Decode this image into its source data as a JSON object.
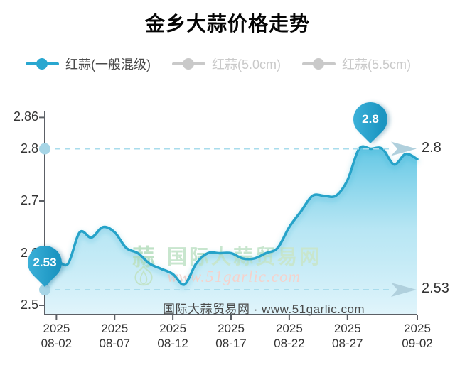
{
  "title": "金乡大蒜价格走势",
  "legend": {
    "items": [
      {
        "label": "红蒜(一般混级)",
        "active": true,
        "color": "#29a7d0"
      },
      {
        "label": "红蒜(5.0cm)",
        "active": false,
        "color": "#c9c9c9"
      },
      {
        "label": "红蒜(5.5cm)",
        "active": false,
        "color": "#c9c9c9"
      }
    ]
  },
  "y_axis": {
    "ticks": [
      "2.86",
      "2.8",
      "2.7",
      "2.6",
      "2.5"
    ]
  },
  "x_axis": {
    "ticks": [
      {
        "year": "2025",
        "date": "08-02"
      },
      {
        "year": "2025",
        "date": "08-07"
      },
      {
        "year": "2025",
        "date": "08-12"
      },
      {
        "year": "2025",
        "date": "08-17"
      },
      {
        "year": "2025",
        "date": "08-22"
      },
      {
        "year": "2025",
        "date": "08-27"
      },
      {
        "year": "2025",
        "date": "09-02"
      }
    ]
  },
  "markers": {
    "start_label": "2.53",
    "end_label": "2.8"
  },
  "reference_lines": [
    {
      "value": 2.8,
      "label": "2.8"
    },
    {
      "value": 2.53,
      "label": "2.53"
    }
  ],
  "watermark": {
    "logo_char": "蒜",
    "site_name": "国际大蒜贸易网",
    "site_url": "www.51garlic.com"
  },
  "footer": "国际大蒜贸易网 · www.51garlic.com",
  "colors": {
    "line": "#27a3c9",
    "area_top": "#4fc0e1",
    "area_bottom": "#dff4fb",
    "dashed": "#a9dcec",
    "dot": "#a6d5e6",
    "arrow": "#b0d0dd",
    "axis": "#5c6066",
    "pin": "#1b95c1",
    "inactive_legend": "#c9c9c9"
  },
  "chart_data": {
    "type": "line",
    "title": "金乡大蒜价格走势",
    "ylim": [
      2.5,
      2.86
    ],
    "y_ticks": [
      2.86,
      2.8,
      2.7,
      2.6,
      2.5
    ],
    "x_tick_indices": [
      1,
      6,
      11,
      16,
      21,
      26,
      32
    ],
    "legend_position": "top-left",
    "grid": false,
    "series": [
      {
        "name": "红蒜(一般混级)",
        "x": [
          "2025-08-01",
          "2025-08-02",
          "2025-08-03",
          "2025-08-04",
          "2025-08-05",
          "2025-08-06",
          "2025-08-07",
          "2025-08-08",
          "2025-08-09",
          "2025-08-10",
          "2025-08-11",
          "2025-08-12",
          "2025-08-13",
          "2025-08-14",
          "2025-08-15",
          "2025-08-16",
          "2025-08-17",
          "2025-08-18",
          "2025-08-19",
          "2025-08-20",
          "2025-08-21",
          "2025-08-22",
          "2025-08-23",
          "2025-08-24",
          "2025-08-25",
          "2025-08-26",
          "2025-08-27",
          "2025-08-28",
          "2025-08-29",
          "2025-08-30",
          "2025-08-31",
          "2025-09-01",
          "2025-09-02"
        ],
        "values": [
          2.53,
          2.58,
          2.58,
          2.64,
          2.63,
          2.65,
          2.64,
          2.61,
          2.6,
          2.58,
          2.57,
          2.56,
          2.54,
          2.58,
          2.6,
          2.6,
          2.6,
          2.59,
          2.59,
          2.6,
          2.61,
          2.65,
          2.68,
          2.71,
          2.71,
          2.71,
          2.74,
          2.8,
          2.8,
          2.8,
          2.77,
          2.79,
          2.78
        ]
      },
      {
        "name": "红蒜(5.0cm)",
        "values": [],
        "visible": false
      },
      {
        "name": "红蒜(5.5cm)",
        "values": [],
        "visible": false
      }
    ],
    "annotations": [
      {
        "index": 0,
        "label": "2.53",
        "type": "balloon"
      },
      {
        "index": 28,
        "label": "2.8",
        "type": "balloon"
      }
    ],
    "reference_values": [
      2.8,
      2.53
    ]
  }
}
